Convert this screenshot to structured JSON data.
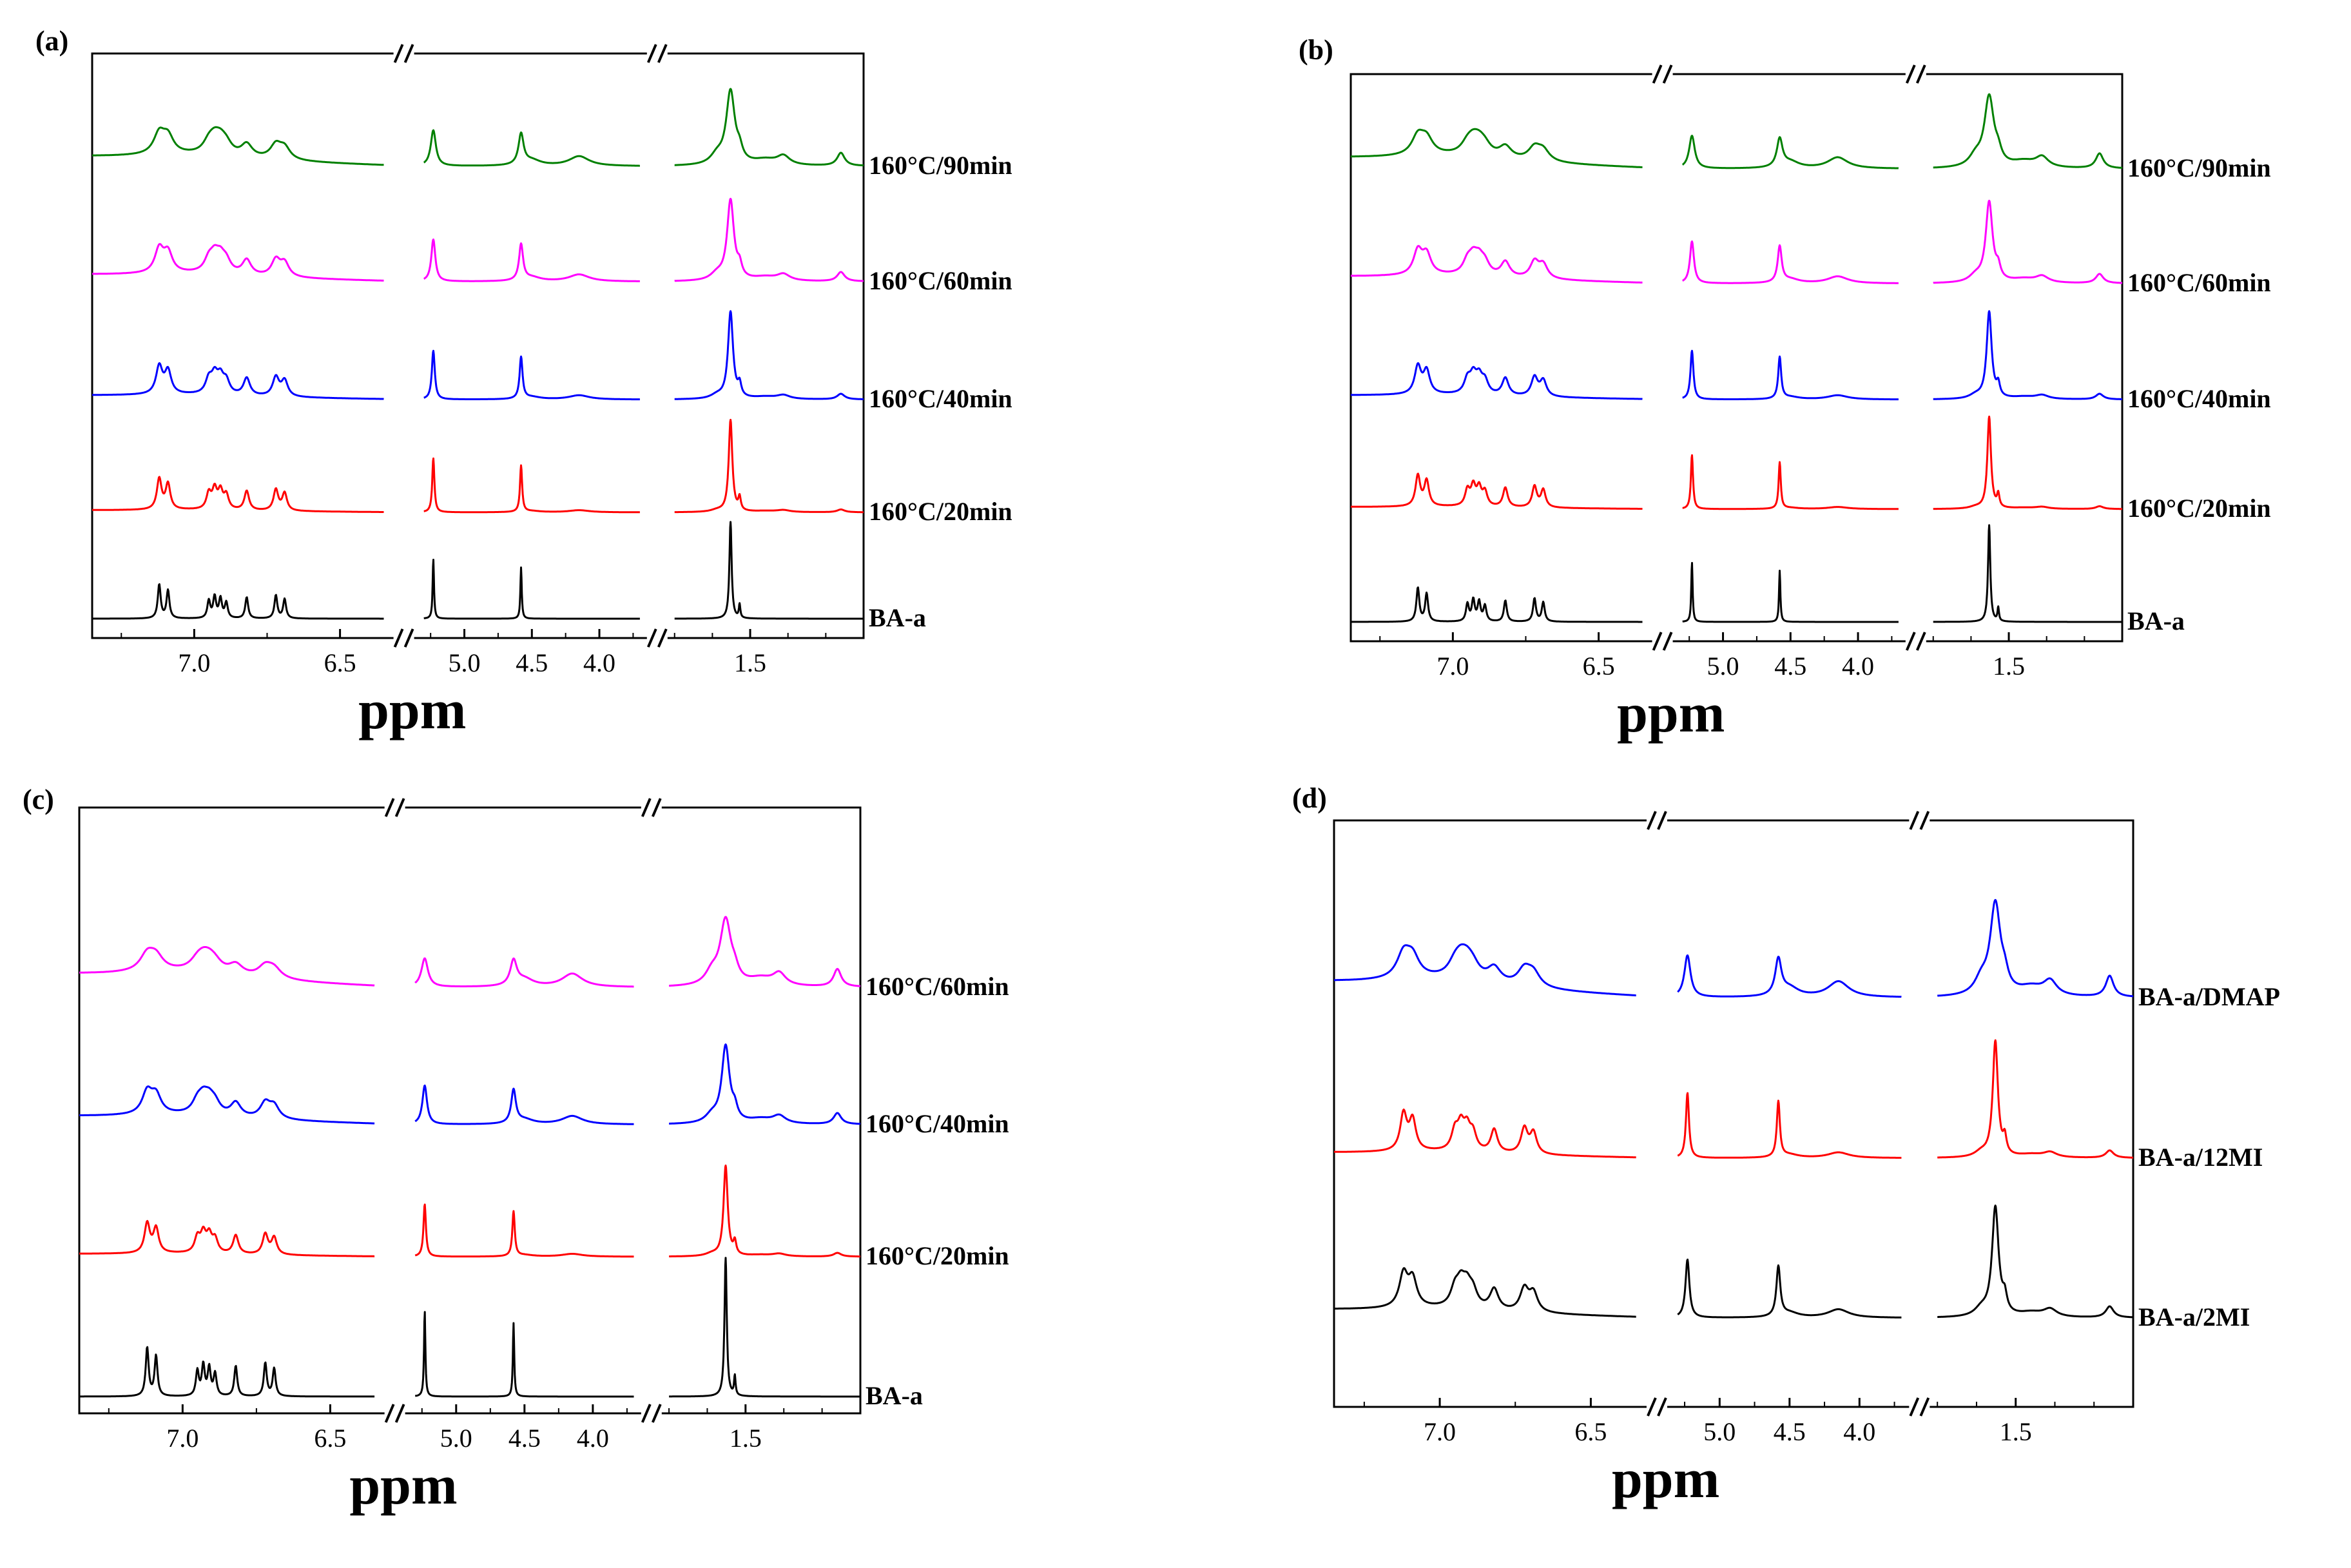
{
  "figure": {
    "axis_label": "ppm",
    "xticks": [
      "7.0",
      "6.5",
      "5.0",
      "4.5",
      "4.0",
      "1.5"
    ]
  },
  "colors": {
    "BA-a": "#000000",
    "160°C/20min": "#ff0000",
    "160°C/40min": "#0000ff",
    "160°C/60min": "#ff00ff",
    "160°C/90min": "#008000",
    "BA-a/2MI": "#000000",
    "BA-a/12MI": "#ff0000",
    "BA-a/DMAP": "#0000ff"
  },
  "chart_data": [
    {
      "type": "line",
      "panel_label": "(a)",
      "xlabel": "ppm",
      "x_segments": [
        [
          7.35,
          6.35
        ],
        [
          5.3,
          3.7
        ],
        [
          2.0,
          0.75
        ]
      ],
      "xticks": [
        "7.0",
        "6.5",
        "5.0",
        "4.5",
        "4.0",
        "1.5"
      ],
      "series": [
        {
          "name": "BA-a",
          "label": "BA-a",
          "color": "#000000",
          "broad": 0.0
        },
        {
          "name": "160°C/20min",
          "label": "160°C/20min",
          "color": "#ff0000",
          "broad": 0.15
        },
        {
          "name": "160°C/40min",
          "label": "160°C/40min",
          "color": "#0000ff",
          "broad": 0.3
        },
        {
          "name": "160°C/60min",
          "label": "160°C/60min",
          "color": "#ff00ff",
          "broad": 0.5
        },
        {
          "name": "160°C/90min",
          "label": "160°C/90min",
          "color": "#008000",
          "broad": 0.7
        }
      ]
    },
    {
      "type": "line",
      "panel_label": "(b)",
      "xlabel": "ppm",
      "x_segments": [
        [
          7.35,
          6.35
        ],
        [
          5.3,
          3.7
        ],
        [
          2.0,
          0.75
        ]
      ],
      "xticks": [
        "7.0",
        "6.5",
        "5.0",
        "4.5",
        "4.0",
        "1.5"
      ],
      "series": [
        {
          "name": "BA-a",
          "label": "BA-a",
          "color": "#000000",
          "broad": 0.0
        },
        {
          "name": "160°C/20min",
          "label": "160°C/20min",
          "color": "#ff0000",
          "broad": 0.15
        },
        {
          "name": "160°C/40min",
          "label": "160°C/40min",
          "color": "#0000ff",
          "broad": 0.3
        },
        {
          "name": "160°C/60min",
          "label": "160°C/60min",
          "color": "#ff00ff",
          "broad": 0.5
        },
        {
          "name": "160°C/90min",
          "label": "160°C/90min",
          "color": "#008000",
          "broad": 0.8
        }
      ]
    },
    {
      "type": "line",
      "panel_label": "(c)",
      "xlabel": "ppm",
      "x_segments": [
        [
          7.35,
          6.35
        ],
        [
          5.3,
          3.7
        ],
        [
          2.0,
          0.75
        ]
      ],
      "xticks": [
        "7.0",
        "6.5",
        "5.0",
        "4.5",
        "4.0",
        "1.5"
      ],
      "series": [
        {
          "name": "BA-a",
          "label": "BA-a",
          "color": "#000000",
          "broad": 0.0
        },
        {
          "name": "160°C/20min",
          "label": "160°C/20min",
          "color": "#ff0000",
          "broad": 0.2
        },
        {
          "name": "160°C/40min",
          "label": "160°C/40min",
          "color": "#0000ff",
          "broad": 0.6
        },
        {
          "name": "160°C/60min",
          "label": "160°C/60min",
          "color": "#ff00ff",
          "broad": 0.95
        }
      ]
    },
    {
      "type": "line",
      "panel_label": "(d)",
      "xlabel": "ppm",
      "x_segments": [
        [
          7.35,
          6.35
        ],
        [
          5.3,
          3.7
        ],
        [
          2.0,
          0.75
        ]
      ],
      "xticks": [
        "7.0",
        "6.5",
        "5.0",
        "4.5",
        "4.0",
        "1.5"
      ],
      "series": [
        {
          "name": "BA-a/2MI",
          "label": "BA-a/2MI",
          "color": "#000000",
          "broad": 0.45
        },
        {
          "name": "BA-a/12MI",
          "label": "BA-a/12MI",
          "color": "#ff0000",
          "broad": 0.3
        },
        {
          "name": "BA-a/DMAP",
          "label": "BA-a/DMAP",
          "color": "#0000ff",
          "broad": 0.85
        }
      ]
    }
  ]
}
